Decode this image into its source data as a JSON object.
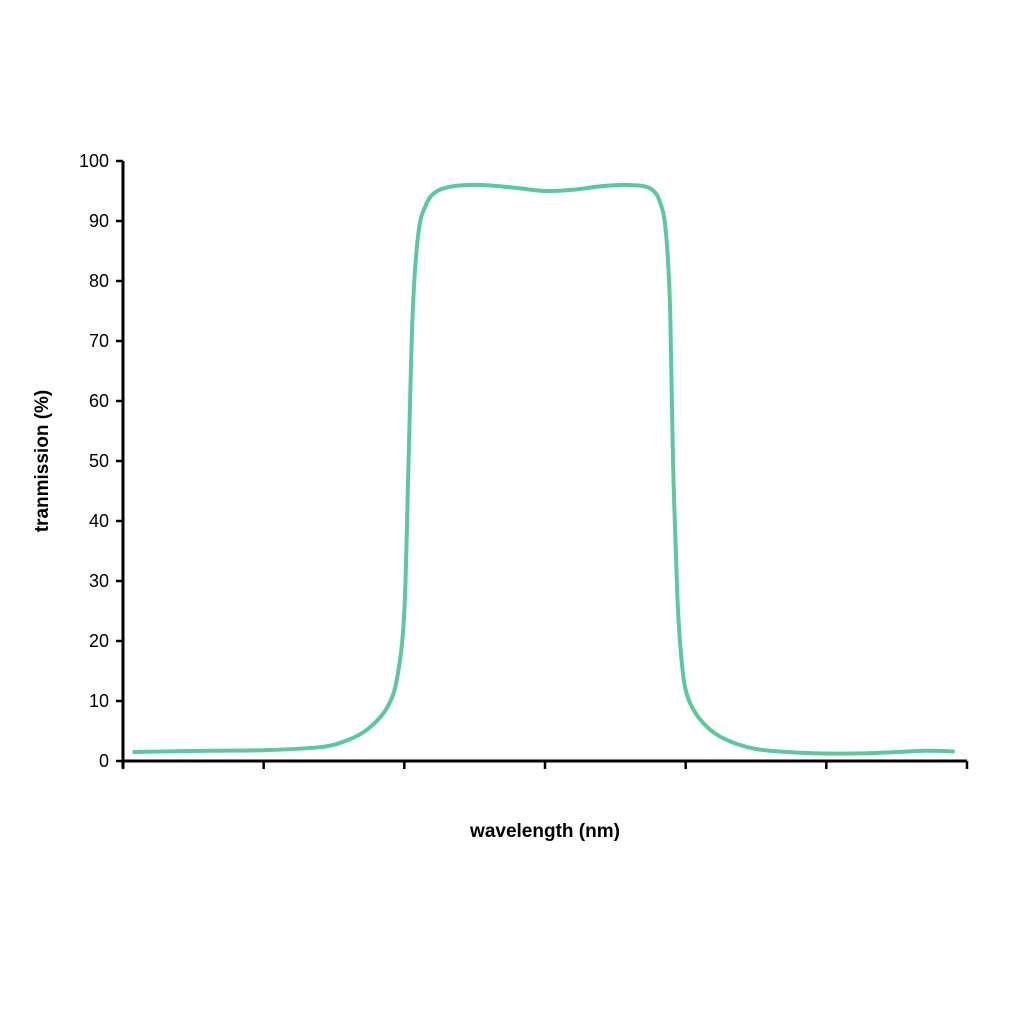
{
  "chart_data": {
    "type": "line",
    "title": "",
    "xlabel": "wavelength (nm)",
    "ylabel": "tranmission (%)",
    "ylim": [
      0,
      100
    ],
    "yticks": [
      0,
      10,
      20,
      30,
      40,
      50,
      60,
      70,
      80,
      90,
      100
    ],
    "xlim": [
      0,
      6
    ],
    "xticks": [
      0,
      1,
      2,
      3,
      4,
      5,
      6
    ],
    "x_tick_labels_shown": false,
    "grid": false,
    "legend": "none",
    "series": [
      {
        "color": "#5BC99E",
        "x": [
          0.08,
          0.6,
          1.0,
          1.4,
          1.6,
          1.75,
          1.88,
          1.95,
          2.0,
          2.03,
          2.06,
          2.1,
          2.15,
          2.22,
          2.35,
          2.55,
          2.8,
          3.0,
          3.2,
          3.4,
          3.6,
          3.75,
          3.82,
          3.86,
          3.89,
          3.91,
          3.94,
          3.97,
          4.01,
          4.1,
          4.25,
          4.5,
          4.9,
          5.3,
          5.7,
          5.9
        ],
        "y": [
          1.5,
          1.7,
          1.8,
          2.3,
          3.5,
          5.5,
          9.0,
          14.0,
          25.0,
          50.0,
          75.0,
          88.0,
          92.5,
          94.8,
          95.8,
          96.0,
          95.5,
          95.0,
          95.2,
          95.8,
          96.0,
          95.4,
          93.0,
          88.0,
          75.0,
          50.0,
          28.0,
          17.0,
          11.0,
          7.0,
          4.0,
          2.0,
          1.3,
          1.3,
          1.7,
          1.6
        ]
      }
    ]
  }
}
